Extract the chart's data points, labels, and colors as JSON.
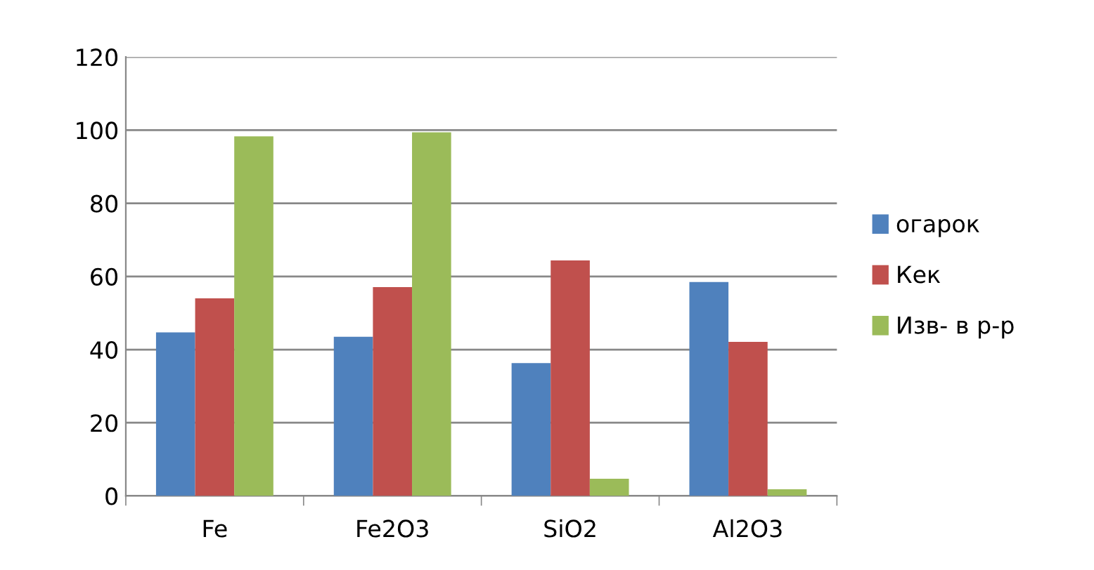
{
  "chart_data": {
    "type": "bar",
    "categories": [
      "Fe",
      "Fe2O3",
      "SiO2",
      "Al2O3"
    ],
    "series": [
      {
        "name": "огарок",
        "color": "#4f81bd",
        "values": [
          44.7,
          43.5,
          36.3,
          58.5
        ]
      },
      {
        "name": "Кек",
        "color": "#c0504d",
        "values": [
          54,
          57.1,
          64.4,
          42.1
        ]
      },
      {
        "name": "Изв- в р-р",
        "color": "#9bbb59",
        "values": [
          98.3,
          99.4,
          4.7,
          1.8
        ]
      }
    ],
    "ylim": [
      0,
      120
    ],
    "yticks": [
      0,
      20,
      40,
      60,
      80,
      100,
      120
    ],
    "grid": "y",
    "legend": "right"
  }
}
